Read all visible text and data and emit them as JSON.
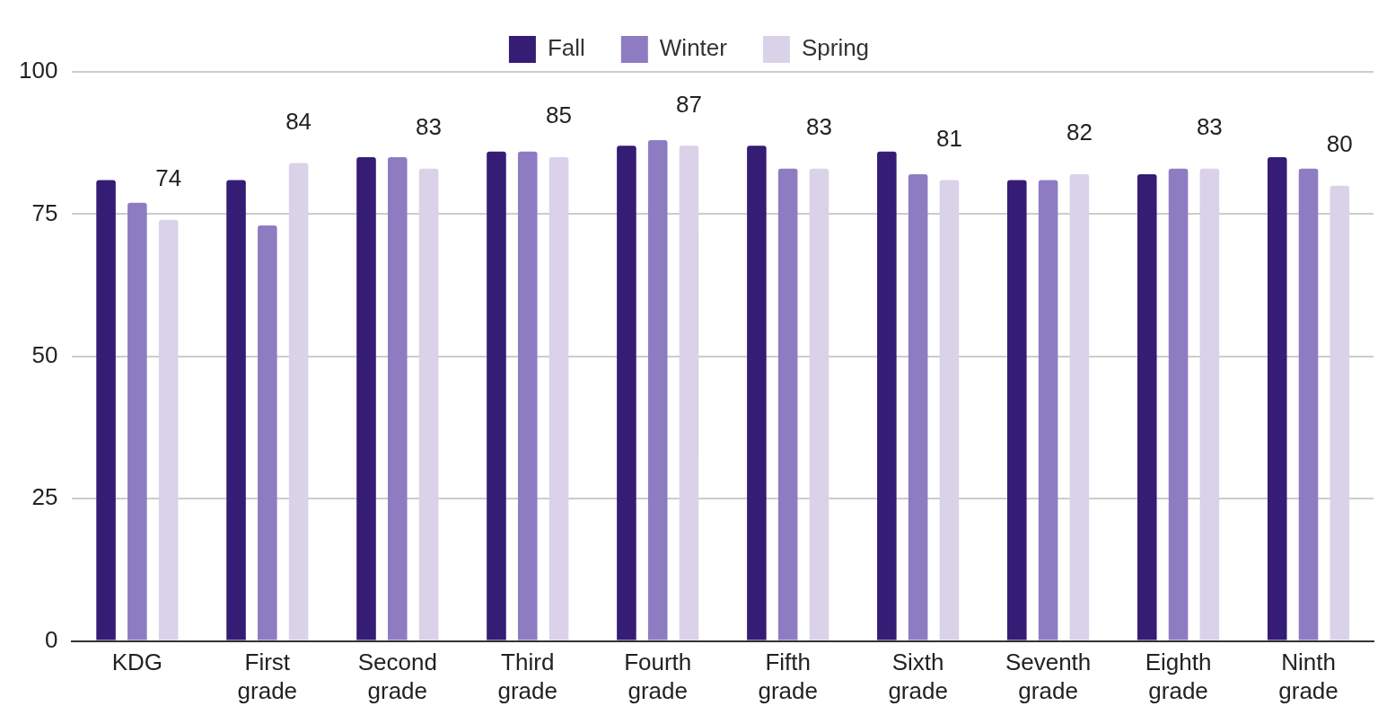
{
  "chart_data": {
    "type": "bar",
    "categories": [
      "KDG",
      "First grade",
      "Second grade",
      "Third grade",
      "Fourth grade",
      "Fifth grade",
      "Sixth grade",
      "Seventh grade",
      "Eighth grade",
      "Ninth grade"
    ],
    "series": [
      {
        "name": "Fall",
        "color": "#351c75",
        "values": [
          81,
          81,
          85,
          86,
          87,
          87,
          86,
          81,
          82,
          85
        ]
      },
      {
        "name": "Winter",
        "color": "#8e7cc3",
        "values": [
          77,
          73,
          85,
          86,
          88,
          83,
          82,
          81,
          83,
          83
        ]
      },
      {
        "name": "Spring",
        "color": "#d9d2e9",
        "values": [
          74,
          84,
          83,
          85,
          87,
          83,
          81,
          82,
          83,
          80
        ],
        "value_labels": [
          "74",
          "84",
          "83",
          "85",
          "87",
          "83",
          "81",
          "82",
          "83",
          "80"
        ]
      }
    ],
    "ylim": [
      0,
      100
    ],
    "yticks": [
      0,
      25,
      50,
      75,
      100
    ],
    "grid": "y",
    "legend": "top"
  }
}
